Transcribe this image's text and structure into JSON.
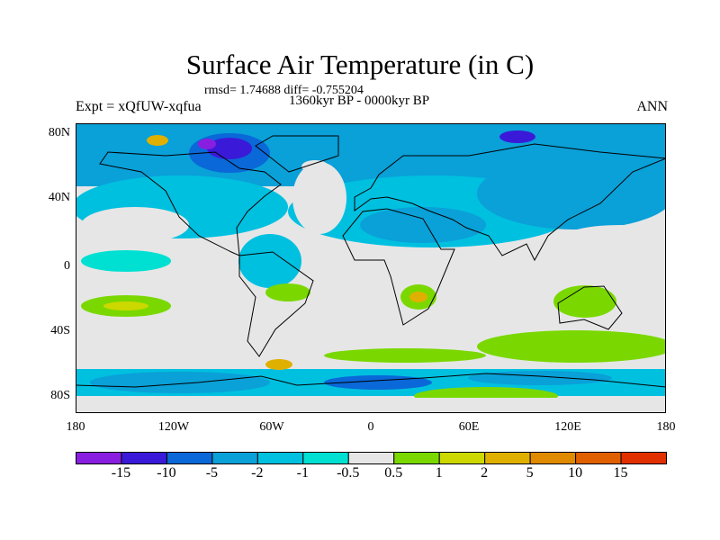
{
  "title": "Surface Air Temperature (in C)",
  "stats": "rmsd= 1.74688 diff= -0.755204",
  "period": "1360kyr BP - 0000kyr BP",
  "experiment": "Expt = xQfUW-xqfua",
  "season": "ANN",
  "axes": {
    "lat_labels": [
      "80N",
      "40N",
      "0",
      "40S",
      "80S"
    ],
    "lat_values": [
      80,
      40,
      0,
      -40,
      -80
    ],
    "lon_labels": [
      "180",
      "120W",
      "60W",
      "0",
      "60E",
      "120E",
      "180"
    ],
    "lon_values": [
      -180,
      -120,
      -60,
      0,
      60,
      120,
      180
    ]
  },
  "chart_data": {
    "type": "heatmap",
    "title": "Surface Air Temperature (in C)",
    "variable": "Surface air temperature difference",
    "units": "C",
    "xlim": [
      -180,
      180
    ],
    "ylim": [
      -90,
      90
    ],
    "colorbar": {
      "levels": [
        "-15",
        "-10",
        "-5",
        "-2",
        "-1",
        "-0.5",
        "0.5",
        "1",
        "2",
        "5",
        "10",
        "15"
      ],
      "colors": [
        "#8a1ee0",
        "#3a1ad8",
        "#0a68d8",
        "#0aa0d8",
        "#00c0e0",
        "#00e0d2",
        "#e6e6e6",
        "#7ad800",
        "#ccd800",
        "#e0b000",
        "#e08a00",
        "#e06000",
        "#e03000"
      ]
    }
  }
}
